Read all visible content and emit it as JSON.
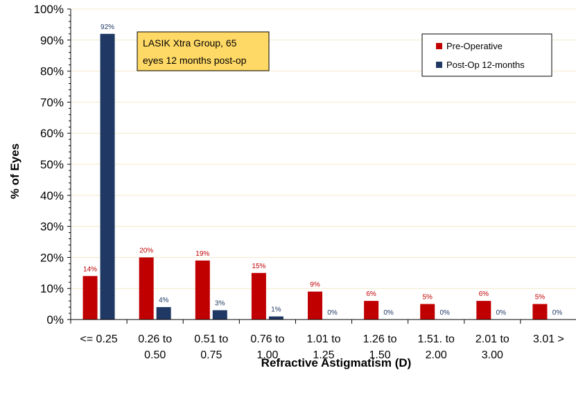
{
  "chart_data": {
    "type": "bar",
    "categories": [
      [
        "<= 0.25"
      ],
      [
        "0.26 to",
        "0.50"
      ],
      [
        "0.51 to",
        "0.75"
      ],
      [
        "0.76 to",
        "1.00"
      ],
      [
        "1.01 to",
        "1.25"
      ],
      [
        "1.26 to",
        "1.50"
      ],
      [
        "1.51. to",
        "2.00"
      ],
      [
        "2.01 to",
        "3.00"
      ],
      [
        "3.01 >"
      ]
    ],
    "series": [
      {
        "name": "Pre-Operative",
        "color": "#C00000",
        "values": [
          14,
          20,
          19,
          15,
          9,
          6,
          5,
          6,
          5
        ],
        "labels": [
          "14%",
          "20%",
          "19%",
          "15%",
          "9%",
          "6%",
          "5%",
          "6%",
          "5%"
        ]
      },
      {
        "name": "Post-Op 12-months",
        "color": "#1F3864",
        "values": [
          92,
          4,
          3,
          1,
          0,
          0,
          0,
          0,
          0
        ],
        "labels": [
          "92%",
          "4%",
          "3%",
          "1%",
          "0%",
          "0%",
          "0%",
          "0%",
          "0%"
        ]
      }
    ],
    "ylim": [
      0,
      100
    ],
    "yticks": [
      "0%",
      "10%",
      "20%",
      "30%",
      "40%",
      "50%",
      "60%",
      "70%",
      "80%",
      "90%",
      "100%"
    ],
    "xlabel": "Refractive Astigmatism (D)",
    "ylabel": "% of Eyes",
    "legend_position": "top-right",
    "grid": "light horizontal",
    "annotation": {
      "lines": [
        "LASIK Xtra Group, 65",
        "eyes 12 months post-op"
      ],
      "background": "#FFD966"
    }
  }
}
